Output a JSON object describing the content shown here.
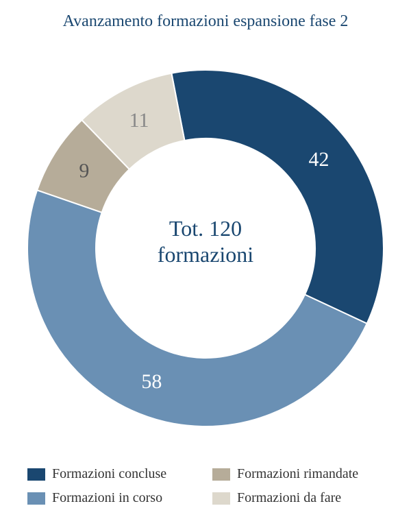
{
  "chart": {
    "type": "donut",
    "title": "Avanzamento formazioni espansione fase 2",
    "center_label_line1": "Tot. 120",
    "center_label_line2": "formazioni",
    "background_color": "#ffffff",
    "title_color": "#1a4770",
    "title_fontsize": 24,
    "center_fontsize": 32,
    "center_color": "#1a4770",
    "outer_radius": 260,
    "inner_radius": 160,
    "start_angle_deg": -11,
    "slices": [
      {
        "key": "concluse",
        "value": 42,
        "color": "#1a4770",
        "label_color": "#ffffff"
      },
      {
        "key": "in_corso",
        "value": 58,
        "color": "#6a90b4",
        "label_color": "#ffffff"
      },
      {
        "key": "rimandate",
        "value": 9,
        "color": "#b6ac99",
        "label_color": "#555555"
      },
      {
        "key": "da_fare",
        "value": 11,
        "color": "#ddd8cc",
        "label_color": "#888888"
      }
    ],
    "slice_label_fontsize": 30,
    "legend": {
      "fontsize": 20,
      "label_color": "#333333",
      "items": [
        {
          "swatch": "#1a4770",
          "label": "Formazioni concluse"
        },
        {
          "swatch": "#b6ac99",
          "label": "Formazioni rimandate"
        },
        {
          "swatch": "#6a90b4",
          "label": "Formazioni in corso"
        },
        {
          "swatch": "#ddd8cc",
          "label": "Formazioni da fare"
        }
      ]
    }
  }
}
